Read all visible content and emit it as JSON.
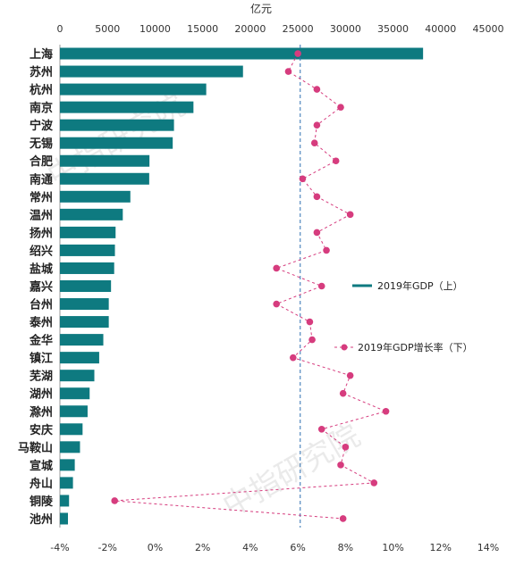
{
  "chart_data": {
    "type": "bar",
    "top_axis_unit": "亿元",
    "top_axis_ticks": [
      "0",
      "5000",
      "10000",
      "15000",
      "20000",
      "25000",
      "30000",
      "35000",
      "40000",
      "45000"
    ],
    "top_axis_range": [
      0,
      45000
    ],
    "bottom_axis_ticks": [
      "-4%",
      "-2%",
      "0%",
      "2%",
      "4%",
      "6%",
      "8%",
      "10%",
      "12%",
      "14%"
    ],
    "bottom_axis_range": [
      -4,
      14
    ],
    "reference_line_value": 6.1,
    "categories": [
      "上海",
      "苏州",
      "杭州",
      "南京",
      "宁波",
      "无锡",
      "合肥",
      "南通",
      "常州",
      "温州",
      "扬州",
      "绍兴",
      "盐城",
      "嘉兴",
      "台州",
      "泰州",
      "金华",
      "镇江",
      "芜湖",
      "湖州",
      "滁州",
      "安庆",
      "马鞍山",
      "宣城",
      "舟山",
      "铜陵",
      "池州"
    ],
    "series": [
      {
        "name": "2019年GDP（上）",
        "axis": "top",
        "color": "#0e7a80",
        "values": [
          38155,
          19236,
          15373,
          14030,
          11985,
          11852,
          9409,
          9383,
          7401,
          6606,
          5850,
          5781,
          5702,
          5370,
          5134,
          5133,
          4560,
          4127,
          3618,
          3123,
          2909,
          2381,
          2111,
          1561,
          1372,
          960,
          846
        ]
      },
      {
        "name": "2019年GDP增长率（下）",
        "axis": "bottom",
        "color": "#d63c7e",
        "values": [
          6.0,
          5.6,
          6.8,
          7.8,
          6.8,
          6.7,
          7.6,
          6.2,
          6.8,
          8.2,
          6.8,
          7.2,
          5.1,
          7.0,
          5.1,
          6.5,
          6.6,
          5.8,
          8.2,
          7.9,
          9.7,
          7.0,
          8.0,
          7.8,
          9.2,
          -1.7,
          7.9
        ]
      }
    ],
    "legend_position": "right",
    "watermark": "中指研究院",
    "grid": false
  }
}
